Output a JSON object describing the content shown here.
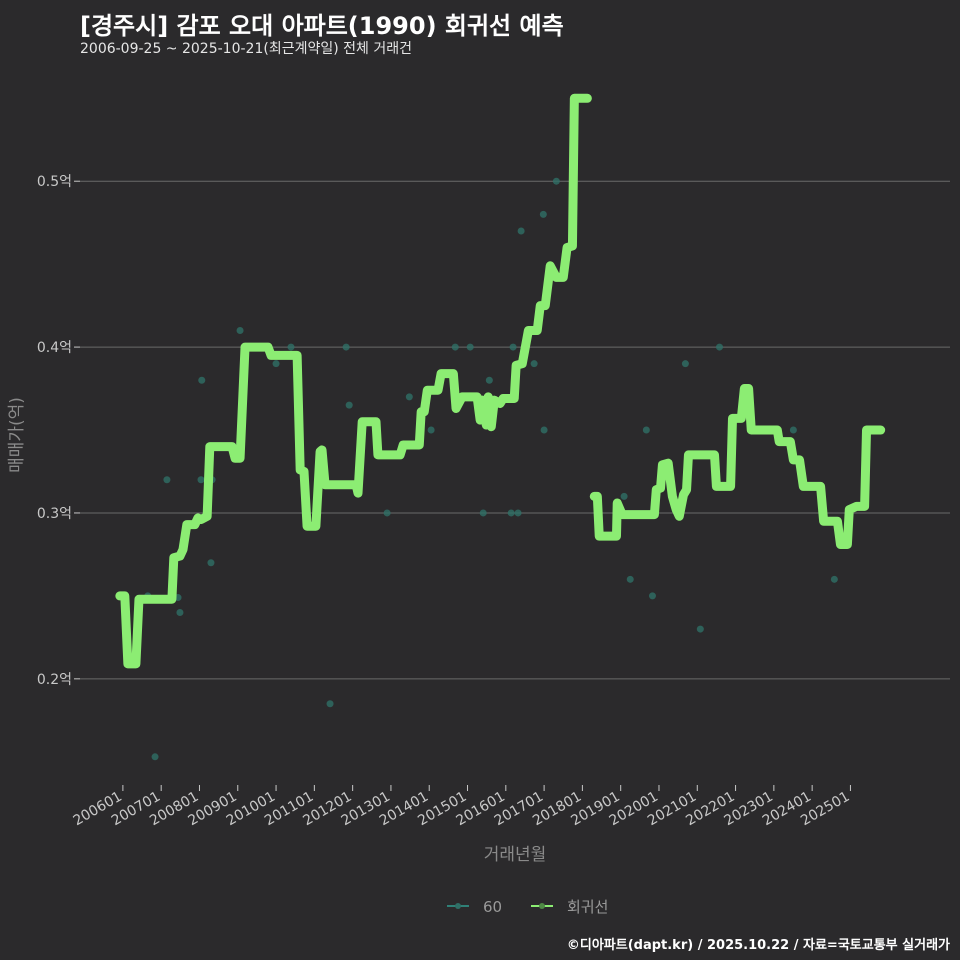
{
  "colors": {
    "background": "#2b2a2c",
    "regression": "#8ced73",
    "scatter": "#2f6f66",
    "grid": "#6a6a6a"
  },
  "chart_data": {
    "type": "line",
    "title": "[경주시] 감포 오대 아파트(1990) 회귀선 예측",
    "subtitle": "2006-09-25 ~ 2025-10-21(최근계약일) 전체 거래건",
    "xlabel": "거래년월",
    "ylabel": "매매가(억)",
    "xlim": [
      2004.88,
      2027.6
    ],
    "ylim": [
      0.136,
      0.558
    ],
    "grid": true,
    "legend_position": "bottom",
    "x_ticks": [
      {
        "v": 2006,
        "label": "200601"
      },
      {
        "v": 2007,
        "label": "200701"
      },
      {
        "v": 2008,
        "label": "200801"
      },
      {
        "v": 2009,
        "label": "200901"
      },
      {
        "v": 2010,
        "label": "201001"
      },
      {
        "v": 2011,
        "label": "201101"
      },
      {
        "v": 2012,
        "label": "201201"
      },
      {
        "v": 2013,
        "label": "201301"
      },
      {
        "v": 2014,
        "label": "201401"
      },
      {
        "v": 2015,
        "label": "201501"
      },
      {
        "v": 2016,
        "label": "201601"
      },
      {
        "v": 2017,
        "label": "201701"
      },
      {
        "v": 2018,
        "label": "201801"
      },
      {
        "v": 2019,
        "label": "201901"
      },
      {
        "v": 2020,
        "label": "202001"
      },
      {
        "v": 2021,
        "label": "202101"
      },
      {
        "v": 2022,
        "label": "202201"
      },
      {
        "v": 2023,
        "label": "202301"
      },
      {
        "v": 2024,
        "label": "202401"
      },
      {
        "v": 2025,
        "label": "202501"
      }
    ],
    "y_ticks": [
      {
        "v": 0.2,
        "label": "0.2억"
      },
      {
        "v": 0.3,
        "label": "0.3억"
      },
      {
        "v": 0.4,
        "label": "0.4억"
      },
      {
        "v": 0.5,
        "label": "0.5억"
      }
    ],
    "legend": [
      {
        "name": "60",
        "key": "scatter"
      },
      {
        "name": "회귀선",
        "key": "regression"
      }
    ],
    "series": [
      {
        "name": "60",
        "type": "scatter",
        "points": [
          [
            2006.65,
            0.25
          ],
          [
            2006.84,
            0.153
          ],
          [
            2007.15,
            0.32
          ],
          [
            2007.44,
            0.249
          ],
          [
            2007.49,
            0.24
          ],
          [
            2008.06,
            0.38
          ],
          [
            2008.04,
            0.32
          ],
          [
            2008.33,
            0.32
          ],
          [
            2008.3,
            0.27
          ],
          [
            2009.06,
            0.41
          ],
          [
            2010.0,
            0.39
          ],
          [
            2010.39,
            0.4
          ],
          [
            2011.41,
            0.185
          ],
          [
            2011.83,
            0.4
          ],
          [
            2011.91,
            0.365
          ],
          [
            2012.9,
            0.3
          ],
          [
            2013.48,
            0.37
          ],
          [
            2014.05,
            0.35
          ],
          [
            2014.68,
            0.4
          ],
          [
            2015.07,
            0.4
          ],
          [
            2015.41,
            0.3
          ],
          [
            2015.57,
            0.38
          ],
          [
            2016.14,
            0.3
          ],
          [
            2016.19,
            0.4
          ],
          [
            2016.32,
            0.3
          ],
          [
            2016.4,
            0.47
          ],
          [
            2016.74,
            0.39
          ],
          [
            2016.98,
            0.48
          ],
          [
            2017.32,
            0.5
          ],
          [
            2017.0,
            0.35
          ],
          [
            2019.09,
            0.31
          ],
          [
            2019.25,
            0.26
          ],
          [
            2019.67,
            0.35
          ],
          [
            2019.83,
            0.25
          ],
          [
            2020.69,
            0.39
          ],
          [
            2021.08,
            0.23
          ],
          [
            2021.58,
            0.4
          ],
          [
            2023.51,
            0.35
          ],
          [
            2024.58,
            0.26
          ]
        ]
      },
      {
        "name": "회귀선",
        "type": "line",
        "segments": [
          [
            [
              2005.92,
              0.25
            ],
            [
              2006.05,
              0.25
            ],
            [
              2006.13,
              0.209
            ],
            [
              2006.34,
              0.209
            ],
            [
              2006.42,
              0.248
            ],
            [
              2006.58,
              0.248
            ],
            [
              2007.28,
              0.248
            ],
            [
              2007.33,
              0.273
            ],
            [
              2007.49,
              0.274
            ],
            [
              2007.57,
              0.278
            ],
            [
              2007.67,
              0.293
            ],
            [
              2007.88,
              0.293
            ],
            [
              2007.96,
              0.297
            ],
            [
              2008.04,
              0.296
            ],
            [
              2008.2,
              0.298
            ],
            [
              2008.27,
              0.34
            ],
            [
              2008.85,
              0.34
            ],
            [
              2008.93,
              0.333
            ],
            [
              2009.06,
              0.333
            ],
            [
              2009.19,
              0.4
            ],
            [
              2009.79,
              0.4
            ],
            [
              2009.87,
              0.395
            ],
            [
              2010.55,
              0.395
            ],
            [
              2010.63,
              0.326
            ],
            [
              2010.73,
              0.325
            ],
            [
              2010.81,
              0.292
            ],
            [
              2011.04,
              0.292
            ],
            [
              2011.15,
              0.337
            ],
            [
              2011.2,
              0.338
            ],
            [
              2011.28,
              0.317
            ],
            [
              2012.09,
              0.317
            ],
            [
              2012.14,
              0.312
            ],
            [
              2012.25,
              0.355
            ],
            [
              2012.61,
              0.355
            ],
            [
              2012.66,
              0.335
            ],
            [
              2013.24,
              0.335
            ],
            [
              2013.32,
              0.341
            ],
            [
              2013.74,
              0.341
            ],
            [
              2013.79,
              0.361
            ],
            [
              2013.87,
              0.361
            ],
            [
              2013.95,
              0.374
            ],
            [
              2014.23,
              0.374
            ],
            [
              2014.31,
              0.384
            ],
            [
              2014.63,
              0.384
            ],
            [
              2014.7,
              0.363
            ],
            [
              2014.86,
              0.37
            ],
            [
              2015.25,
              0.37
            ],
            [
              2015.33,
              0.356
            ],
            [
              2015.38,
              0.368
            ],
            [
              2015.49,
              0.353
            ],
            [
              2015.54,
              0.37
            ],
            [
              2015.62,
              0.352
            ],
            [
              2015.7,
              0.368
            ],
            [
              2015.85,
              0.366
            ],
            [
              2015.93,
              0.369
            ],
            [
              2016.22,
              0.369
            ],
            [
              2016.27,
              0.389
            ],
            [
              2016.43,
              0.39
            ],
            [
              2016.59,
              0.41
            ],
            [
              2016.82,
              0.41
            ],
            [
              2016.9,
              0.425
            ],
            [
              2017.03,
              0.425
            ],
            [
              2017.16,
              0.449
            ],
            [
              2017.32,
              0.442
            ],
            [
              2017.5,
              0.442
            ],
            [
              2017.6,
              0.46
            ],
            [
              2017.74,
              0.461
            ],
            [
              2017.79,
              0.55
            ],
            [
              2018.13,
              0.55
            ]
          ],
          [
            [
              2018.31,
              0.31
            ],
            [
              2018.39,
              0.31
            ],
            [
              2018.44,
              0.286
            ],
            [
              2018.89,
              0.286
            ],
            [
              2018.91,
              0.306
            ],
            [
              2019.04,
              0.299
            ],
            [
              2019.88,
              0.299
            ],
            [
              2019.93,
              0.314
            ],
            [
              2020.04,
              0.315
            ],
            [
              2020.09,
              0.329
            ],
            [
              2020.24,
              0.33
            ],
            [
              2020.35,
              0.31
            ],
            [
              2020.45,
              0.302
            ],
            [
              2020.53,
              0.298
            ],
            [
              2020.64,
              0.311
            ],
            [
              2020.72,
              0.314
            ],
            [
              2020.77,
              0.335
            ],
            [
              2021.45,
              0.335
            ],
            [
              2021.5,
              0.316
            ],
            [
              2021.87,
              0.316
            ],
            [
              2021.92,
              0.357
            ],
            [
              2022.15,
              0.357
            ],
            [
              2022.23,
              0.375
            ],
            [
              2022.34,
              0.375
            ],
            [
              2022.41,
              0.35
            ],
            [
              2023.09,
              0.35
            ],
            [
              2023.14,
              0.343
            ],
            [
              2023.43,
              0.343
            ],
            [
              2023.51,
              0.332
            ],
            [
              2023.67,
              0.332
            ],
            [
              2023.77,
              0.316
            ],
            [
              2024.22,
              0.316
            ],
            [
              2024.3,
              0.295
            ],
            [
              2024.66,
              0.295
            ],
            [
              2024.74,
              0.281
            ],
            [
              2024.92,
              0.281
            ],
            [
              2024.97,
              0.302
            ],
            [
              2025.16,
              0.304
            ],
            [
              2025.37,
              0.304
            ],
            [
              2025.42,
              0.35
            ],
            [
              2025.79,
              0.35
            ]
          ]
        ]
      }
    ]
  },
  "footer": "©디아파트(dapt.kr) / 2025.10.22 / 자료=국토교통부 실거래가"
}
